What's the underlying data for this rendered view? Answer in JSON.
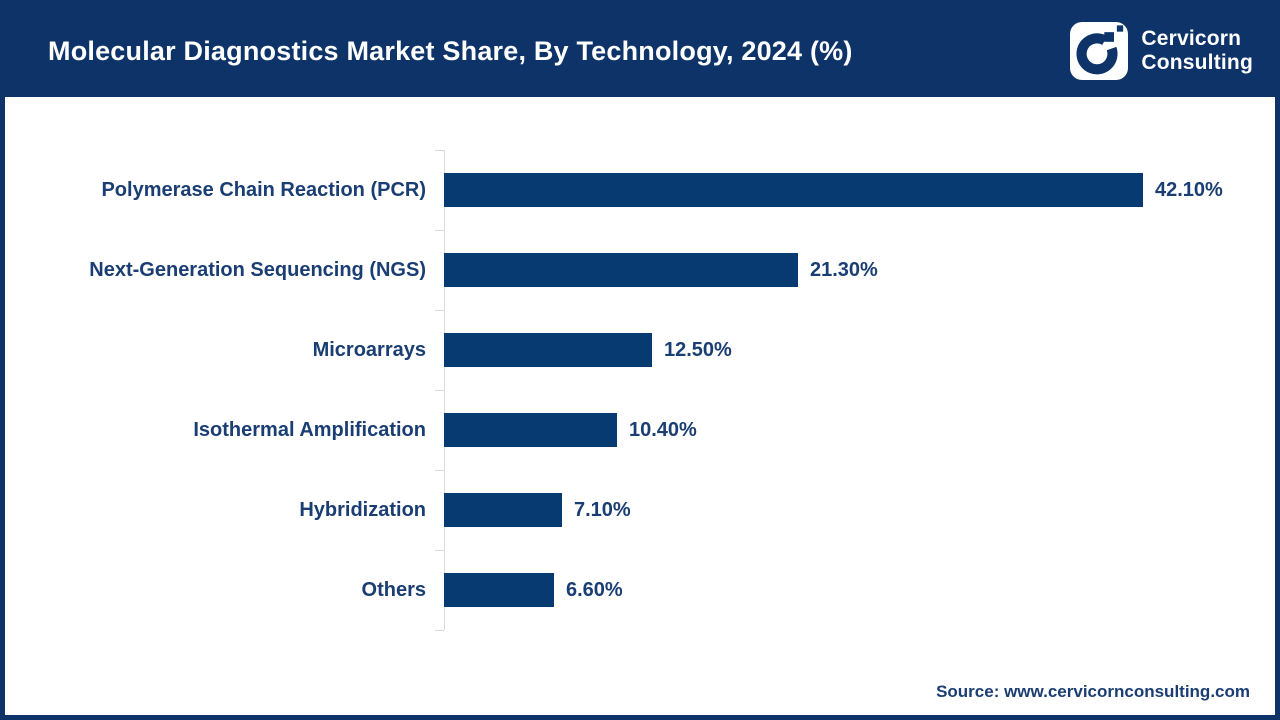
{
  "header": {
    "title": "Molecular Diagnostics Market Share, By Technology, 2024 (%)",
    "logo": {
      "alt": "Cervicorn Consulting",
      "line1": "Cervicorn",
      "line2": "Consulting"
    }
  },
  "chart_data": {
    "type": "bar",
    "orientation": "horizontal",
    "title": "Molecular Diagnostics Market Share, By Technology, 2024 (%)",
    "categories": [
      "Polymerase Chain Reaction (PCR)",
      "Next-Generation Sequencing (NGS)",
      "Microarrays",
      "Isothermal Amplification",
      "Hybridization",
      "Others"
    ],
    "values": [
      42.1,
      21.3,
      12.5,
      10.4,
      7.1,
      6.6
    ],
    "value_labels": [
      "42.10%",
      "21.30%",
      "12.50%",
      "10.40%",
      "7.10%",
      "6.60%"
    ],
    "xlabel": "",
    "ylabel": "",
    "xlim": [
      0,
      45
    ],
    "grid": false,
    "legend": "none",
    "bar_color": "#073a70",
    "axis_line_color": "#d9d9d9"
  },
  "footer": {
    "source": "Source: www.cervicornconsulting.com"
  },
  "colors": {
    "header_bg": "#0d3368",
    "frame_border": "#0d3368",
    "bar": "#073a70",
    "text_navy": "#1a3e73",
    "title_text": "#ffffff",
    "axis_line": "#d9d9d9",
    "background": "#ffffff"
  }
}
